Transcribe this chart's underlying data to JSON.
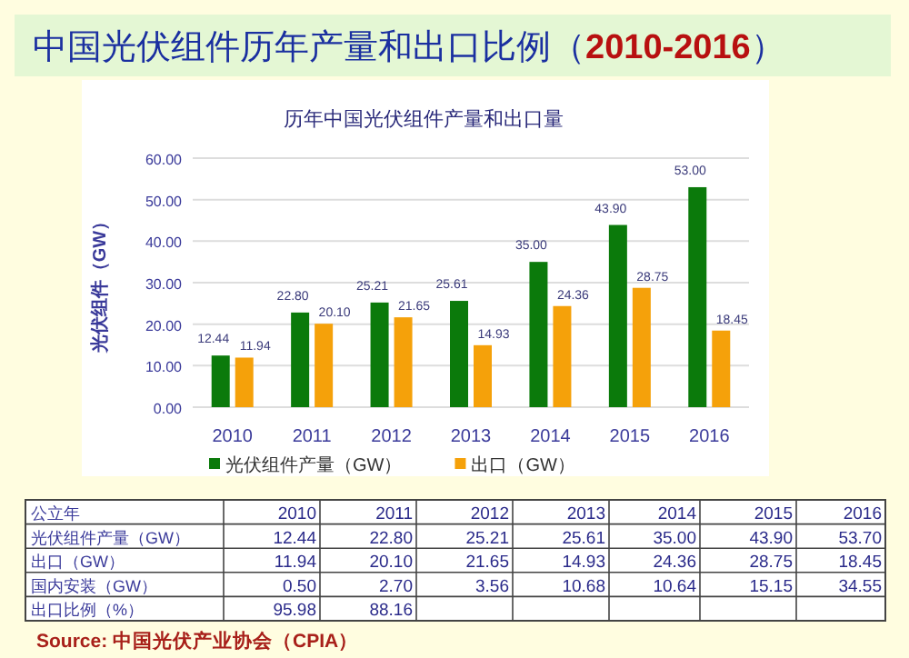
{
  "chart_data": {
    "type": "bar",
    "title": "中国光伏组件历年产量和出口比例（**2010-2016**）",
    "subtitle": "历年中国光伏组件产量和出口量",
    "ylabel": "光伏组件（GW）",
    "categories": [
      "2010",
      "2011",
      "2012",
      "2013",
      "2014",
      "2015",
      "2016"
    ],
    "series": [
      {
        "name": "光伏组件产量（GW）",
        "color": "#0b7a0b",
        "values": [
          12.44,
          22.8,
          25.21,
          25.61,
          35.0,
          43.9,
          53.0
        ],
        "value_labels": [
          "12.44",
          "22.80",
          "25.21",
          "25.61",
          "35.00",
          "43.90",
          "53.00"
        ]
      },
      {
        "name": "出口（GW）",
        "color": "#f5a10a",
        "values": [
          11.94,
          20.1,
          21.65,
          14.93,
          24.36,
          28.75,
          18.45
        ],
        "value_labels": [
          "11.94",
          "20.10",
          "21.65",
          "14.93",
          "24.36",
          "28.75",
          "18.45"
        ]
      }
    ],
    "ylim": [
      0,
      60
    ],
    "yticks": [
      {
        "value": 0,
        "label": "0.00"
      },
      {
        "value": 10,
        "label": "10.00"
      },
      {
        "value": 20,
        "label": "20.00"
      },
      {
        "value": 30,
        "label": "30.00"
      },
      {
        "value": 40,
        "label": "40.00"
      },
      {
        "value": 50,
        "label": "50.00"
      },
      {
        "value": 60,
        "label": "60.00"
      }
    ],
    "grid": "y",
    "legend": "bottom",
    "annotations": [
      "公立年",
      "光伏组件产量（GW）",
      "12.44",
      "22.80",
      "25.21",
      "25.61",
      "35.00",
      "43.90",
      "53.70",
      "出口（GW）",
      "11.94",
      "20.10",
      "21.65",
      "14.93",
      "24.36",
      "28.75",
      "18.45",
      "国内安装（GW）",
      "0.50",
      "2.70",
      "3.56",
      "10.68",
      "10.64",
      "15.15",
      "34.55",
      "出口比例（%）",
      "95.98",
      "88.16",
      "Source: 中国光伏产业协会（CPIA）"
    ]
  }
}
